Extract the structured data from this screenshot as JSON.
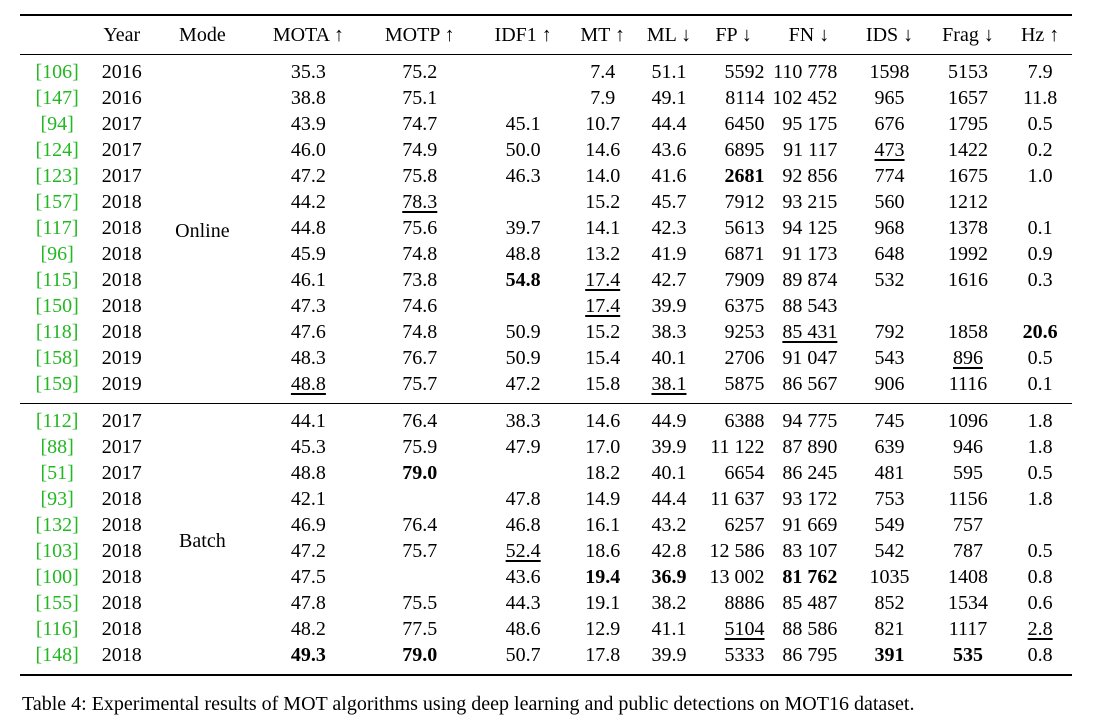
{
  "header": [
    "",
    "Year",
    "Mode",
    "MOTA ↑",
    "MOTP ↑",
    "IDF1 ↑",
    "MT ↑",
    "ML ↓",
    "FP ↓",
    "FN ↓",
    "IDS ↓",
    "Frag ↓",
    "Hz ↑"
  ],
  "groups": [
    {
      "mode": "Online",
      "rows": [
        {
          "ref": "[106]",
          "year": "2016",
          "mota": "35.3",
          "motp": "75.2",
          "idf1": "",
          "mt": "7.4",
          "ml": "51.1",
          "fp": "5592",
          "fn": "110 778",
          "ids": "1598",
          "frag": "5153",
          "hz": "7.9",
          "bold": [],
          "underline": []
        },
        {
          "ref": "[147]",
          "year": "2016",
          "mota": "38.8",
          "motp": "75.1",
          "idf1": "",
          "mt": "7.9",
          "ml": "49.1",
          "fp": "8114",
          "fn": "102 452",
          "ids": "965",
          "frag": "1657",
          "hz": "11.8",
          "bold": [],
          "underline": []
        },
        {
          "ref": "[94]",
          "year": "2017",
          "mota": "43.9",
          "motp": "74.7",
          "idf1": "45.1",
          "mt": "10.7",
          "ml": "44.4",
          "fp": "6450",
          "fn": "95 175",
          "ids": "676",
          "frag": "1795",
          "hz": "0.5",
          "bold": [],
          "underline": []
        },
        {
          "ref": "[124]",
          "year": "2017",
          "mota": "46.0",
          "motp": "74.9",
          "idf1": "50.0",
          "mt": "14.6",
          "ml": "43.6",
          "fp": "6895",
          "fn": "91 117",
          "ids": "473",
          "frag": "1422",
          "hz": "0.2",
          "bold": [],
          "underline": [
            "ids"
          ]
        },
        {
          "ref": "[123]",
          "year": "2017",
          "mota": "47.2",
          "motp": "75.8",
          "idf1": "46.3",
          "mt": "14.0",
          "ml": "41.6",
          "fp": "2681",
          "fn": "92 856",
          "ids": "774",
          "frag": "1675",
          "hz": "1.0",
          "bold": [
            "fp"
          ],
          "underline": []
        },
        {
          "ref": "[157]",
          "year": "2018",
          "mota": "44.2",
          "motp": "78.3",
          "idf1": "",
          "mt": "15.2",
          "ml": "45.7",
          "fp": "7912",
          "fn": "93 215",
          "ids": "560",
          "frag": "1212",
          "hz": "",
          "bold": [],
          "underline": [
            "motp"
          ]
        },
        {
          "ref": "[117]",
          "year": "2018",
          "mota": "44.8",
          "motp": "75.6",
          "idf1": "39.7",
          "mt": "14.1",
          "ml": "42.3",
          "fp": "5613",
          "fn": "94 125",
          "ids": "968",
          "frag": "1378",
          "hz": "0.1",
          "bold": [],
          "underline": []
        },
        {
          "ref": "[96]",
          "year": "2018",
          "mota": "45.9",
          "motp": "74.8",
          "idf1": "48.8",
          "mt": "13.2",
          "ml": "41.9",
          "fp": "6871",
          "fn": "91 173",
          "ids": "648",
          "frag": "1992",
          "hz": "0.9",
          "bold": [],
          "underline": []
        },
        {
          "ref": "[115]",
          "year": "2018",
          "mota": "46.1",
          "motp": "73.8",
          "idf1": "54.8",
          "mt": "17.4",
          "ml": "42.7",
          "fp": "7909",
          "fn": "89 874",
          "ids": "532",
          "frag": "1616",
          "hz": "0.3",
          "bold": [
            "idf1"
          ],
          "underline": [
            "mt"
          ]
        },
        {
          "ref": "[150]",
          "year": "2018",
          "mota": "47.3",
          "motp": "74.6",
          "idf1": "",
          "mt": "17.4",
          "ml": "39.9",
          "fp": "6375",
          "fn": "88 543",
          "ids": "",
          "frag": "",
          "hz": "",
          "bold": [],
          "underline": [
            "mt"
          ]
        },
        {
          "ref": "[118]",
          "year": "2018",
          "mota": "47.6",
          "motp": "74.8",
          "idf1": "50.9",
          "mt": "15.2",
          "ml": "38.3",
          "fp": "9253",
          "fn": "85 431",
          "ids": "792",
          "frag": "1858",
          "hz": "20.6",
          "bold": [
            "hz"
          ],
          "underline": [
            "fn"
          ]
        },
        {
          "ref": "[158]",
          "year": "2019",
          "mota": "48.3",
          "motp": "76.7",
          "idf1": "50.9",
          "mt": "15.4",
          "ml": "40.1",
          "fp": "2706",
          "fn": "91 047",
          "ids": "543",
          "frag": "896",
          "hz": "0.5",
          "bold": [],
          "underline": [
            "frag"
          ]
        },
        {
          "ref": "[159]",
          "year": "2019",
          "mota": "48.8",
          "motp": "75.7",
          "idf1": "47.2",
          "mt": "15.8",
          "ml": "38.1",
          "fp": "5875",
          "fn": "86 567",
          "ids": "906",
          "frag": "1116",
          "hz": "0.1",
          "bold": [],
          "underline": [
            "mota",
            "ml"
          ]
        }
      ]
    },
    {
      "mode": "Batch",
      "rows": [
        {
          "ref": "[112]",
          "year": "2017",
          "mota": "44.1",
          "motp": "76.4",
          "idf1": "38.3",
          "mt": "14.6",
          "ml": "44.9",
          "fp": "6388",
          "fn": "94 775",
          "ids": "745",
          "frag": "1096",
          "hz": "1.8",
          "bold": [],
          "underline": []
        },
        {
          "ref": "[88]",
          "year": "2017",
          "mota": "45.3",
          "motp": "75.9",
          "idf1": "47.9",
          "mt": "17.0",
          "ml": "39.9",
          "fp": "11 122",
          "fn": "87 890",
          "ids": "639",
          "frag": "946",
          "hz": "1.8",
          "bold": [],
          "underline": []
        },
        {
          "ref": "[51]",
          "year": "2017",
          "mota": "48.8",
          "motp": "79.0",
          "idf1": "",
          "mt": "18.2",
          "ml": "40.1",
          "fp": "6654",
          "fn": "86 245",
          "ids": "481",
          "frag": "595",
          "hz": "0.5",
          "bold": [
            "motp"
          ],
          "underline": []
        },
        {
          "ref": "[93]",
          "year": "2018",
          "mota": "42.1",
          "motp": "",
          "idf1": "47.8",
          "mt": "14.9",
          "ml": "44.4",
          "fp": "11 637",
          "fn": "93 172",
          "ids": "753",
          "frag": "1156",
          "hz": "1.8",
          "bold": [],
          "underline": []
        },
        {
          "ref": "[132]",
          "year": "2018",
          "mota": "46.9",
          "motp": "76.4",
          "idf1": "46.8",
          "mt": "16.1",
          "ml": "43.2",
          "fp": "6257",
          "fn": "91 669",
          "ids": "549",
          "frag": "757",
          "hz": "",
          "bold": [],
          "underline": []
        },
        {
          "ref": "[103]",
          "year": "2018",
          "mota": "47.2",
          "motp": "75.7",
          "idf1": "52.4",
          "mt": "18.6",
          "ml": "42.8",
          "fp": "12 586",
          "fn": "83 107",
          "ids": "542",
          "frag": "787",
          "hz": "0.5",
          "bold": [],
          "underline": [
            "idf1"
          ]
        },
        {
          "ref": "[100]",
          "year": "2018",
          "mota": "47.5",
          "motp": "",
          "idf1": "43.6",
          "mt": "19.4",
          "ml": "36.9",
          "fp": "13 002",
          "fn": "81 762",
          "ids": "1035",
          "frag": "1408",
          "hz": "0.8",
          "bold": [
            "mt",
            "ml",
            "fn"
          ],
          "underline": []
        },
        {
          "ref": "[155]",
          "year": "2018",
          "mota": "47.8",
          "motp": "75.5",
          "idf1": "44.3",
          "mt": "19.1",
          "ml": "38.2",
          "fp": "8886",
          "fn": "85 487",
          "ids": "852",
          "frag": "1534",
          "hz": "0.6",
          "bold": [],
          "underline": []
        },
        {
          "ref": "[116]",
          "year": "2018",
          "mota": "48.2",
          "motp": "77.5",
          "idf1": "48.6",
          "mt": "12.9",
          "ml": "41.1",
          "fp": "5104",
          "fn": "88 586",
          "ids": "821",
          "frag": "1117",
          "hz": "2.8",
          "bold": [],
          "underline": [
            "fp",
            "hz"
          ]
        },
        {
          "ref": "[148]",
          "year": "2018",
          "mota": "49.3",
          "motp": "79.0",
          "idf1": "50.7",
          "mt": "17.8",
          "ml": "39.9",
          "fp": "5333",
          "fn": "86 795",
          "ids": "391",
          "frag": "535",
          "hz": "0.8",
          "bold": [
            "mota",
            "motp",
            "ids",
            "frag"
          ],
          "underline": []
        }
      ]
    }
  ],
  "caption": "Table 4: Experimental results of MOT algorithms using deep learning and public detections on MOT16 dataset."
}
